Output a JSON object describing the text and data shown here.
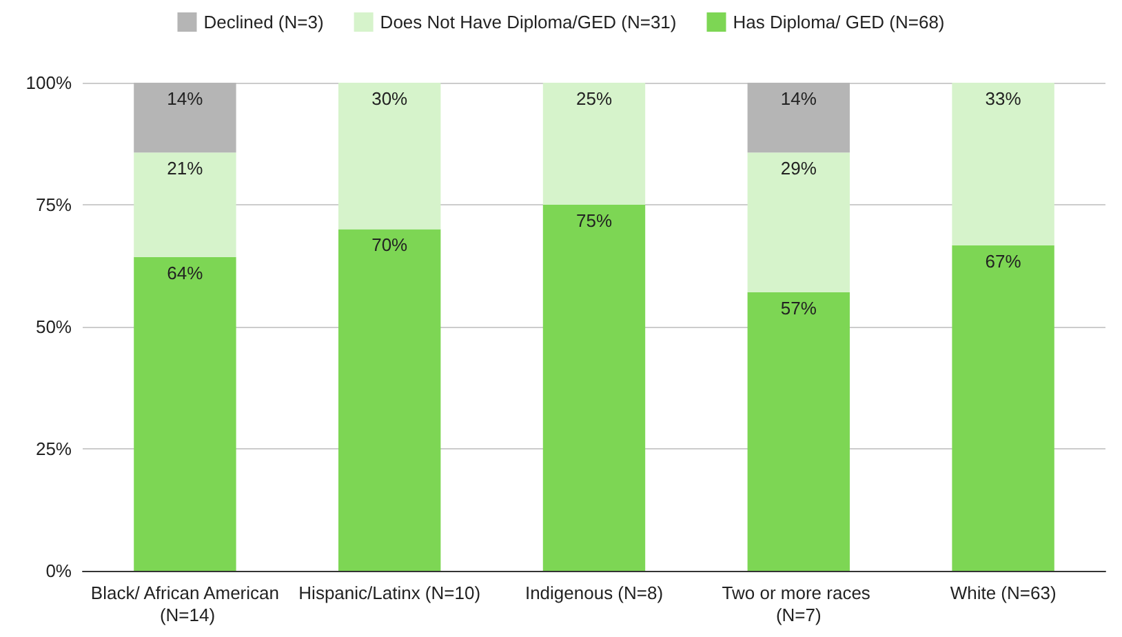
{
  "chart_data": {
    "type": "bar",
    "stacked": true,
    "categories": [
      "Black/ African American (N=14)",
      "Hispanic/Latinx (N=10)",
      "Indigenous (N=8)",
      "Two or more races (N=7)",
      "White (N=63)"
    ],
    "series": [
      {
        "name": "Has Diploma/ GED (N=68)",
        "color": "#7dd654",
        "values": [
          64.3,
          70,
          75,
          57.1,
          66.7
        ],
        "value_labels": [
          "64%",
          "70%",
          "75%",
          "57%",
          "67%"
        ]
      },
      {
        "name": "Does Not Have Diploma/GED (N=31)",
        "color": "#d6f3cb",
        "values": [
          21.4,
          30,
          25,
          28.6,
          33.3
        ],
        "value_labels": [
          "21%",
          "30%",
          "25%",
          "29%",
          "33%"
        ]
      },
      {
        "name": "Declined (N=3)",
        "color": "#b5b5b5",
        "values": [
          14.3,
          null,
          null,
          14.3,
          null
        ],
        "value_labels": [
          "14%",
          null,
          null,
          "14%",
          null
        ]
      }
    ],
    "ylim": [
      0,
      100
    ],
    "yticks": [
      {
        "value": 0,
        "label": "0%"
      },
      {
        "value": 25,
        "label": "25%"
      },
      {
        "value": 50,
        "label": "50%"
      },
      {
        "value": 75,
        "label": "75%"
      },
      {
        "value": 100,
        "label": "100%"
      }
    ],
    "grid": "y",
    "legend": "top"
  }
}
